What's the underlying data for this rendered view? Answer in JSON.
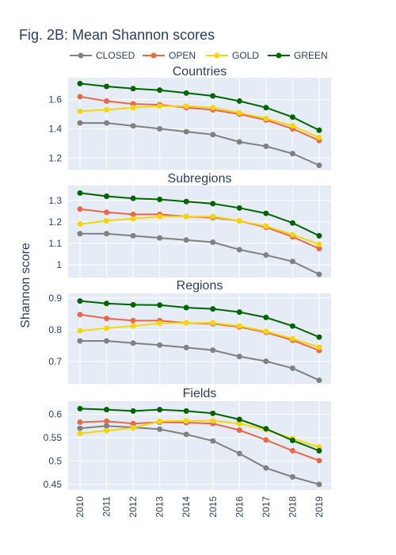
{
  "chart_data": {
    "type": "line",
    "title": "Fig. 2B: Mean Shannon scores",
    "ylabel": "Shannon score",
    "x": [
      "2010",
      "2011",
      "2012",
      "2013",
      "2014",
      "2015",
      "2016",
      "2017",
      "2018",
      "2019"
    ],
    "legend": {
      "placement": "top",
      "entries": [
        {
          "name": "CLOSED",
          "color": "#808080"
        },
        {
          "name": "OPEN",
          "color": "#e8684a"
        },
        {
          "name": "GOLD",
          "color": "#f5d60c"
        },
        {
          "name": "GREEN",
          "color": "#006400"
        }
      ]
    },
    "panels": [
      {
        "title": "Countries",
        "ylim": [
          1.12,
          1.75
        ],
        "yticks": [
          "1.2",
          "1.4",
          "1.6"
        ],
        "series": [
          {
            "name": "CLOSED",
            "values": [
              1.44,
              1.44,
              1.42,
              1.4,
              1.38,
              1.36,
              1.31,
              1.28,
              1.23,
              1.15
            ]
          },
          {
            "name": "OPEN",
            "values": [
              1.62,
              1.59,
              1.57,
              1.565,
              1.545,
              1.53,
              1.5,
              1.46,
              1.4,
              1.32
            ]
          },
          {
            "name": "GOLD",
            "values": [
              1.52,
              1.53,
              1.545,
              1.555,
              1.555,
              1.545,
              1.51,
              1.47,
              1.42,
              1.34
            ]
          },
          {
            "name": "GREEN",
            "values": [
              1.71,
              1.69,
              1.675,
              1.665,
              1.645,
              1.625,
              1.59,
              1.545,
              1.48,
              1.39
            ]
          }
        ]
      },
      {
        "title": "Subregions",
        "ylim": [
          0.94,
          1.37
        ],
        "yticks": [
          "1",
          "1.1",
          "1.2",
          "1.3"
        ],
        "series": [
          {
            "name": "CLOSED",
            "values": [
              1.145,
              1.145,
              1.135,
              1.125,
              1.115,
              1.105,
              1.07,
              1.045,
              1.015,
              0.955
            ]
          },
          {
            "name": "OPEN",
            "values": [
              1.26,
              1.245,
              1.235,
              1.235,
              1.225,
              1.22,
              1.205,
              1.175,
              1.13,
              1.075
            ]
          },
          {
            "name": "GOLD",
            "values": [
              1.19,
              1.205,
              1.215,
              1.225,
              1.225,
              1.225,
              1.205,
              1.18,
              1.14,
              1.095
            ]
          },
          {
            "name": "GREEN",
            "values": [
              1.335,
              1.32,
              1.31,
              1.305,
              1.295,
              1.285,
              1.265,
              1.24,
              1.195,
              1.135
            ]
          }
        ]
      },
      {
        "title": "Regions",
        "ylim": [
          0.63,
          0.915
        ],
        "yticks": [
          "0.7",
          "0.8",
          "0.9"
        ],
        "series": [
          {
            "name": "CLOSED",
            "values": [
              0.765,
              0.765,
              0.758,
              0.752,
              0.744,
              0.736,
              0.716,
              0.701,
              0.679,
              0.641
            ]
          },
          {
            "name": "OPEN",
            "values": [
              0.848,
              0.836,
              0.829,
              0.829,
              0.822,
              0.819,
              0.809,
              0.792,
              0.767,
              0.735
            ]
          },
          {
            "name": "GOLD",
            "values": [
              0.797,
              0.805,
              0.812,
              0.821,
              0.822,
              0.822,
              0.812,
              0.795,
              0.772,
              0.745
            ]
          },
          {
            "name": "GREEN",
            "values": [
              0.891,
              0.883,
              0.879,
              0.878,
              0.87,
              0.866,
              0.856,
              0.839,
              0.812,
              0.777
            ]
          }
        ]
      },
      {
        "title": "Fields",
        "ylim": [
          0.438,
          0.628
        ],
        "yticks": [
          "0.45",
          "0.5",
          "0.55",
          "0.6"
        ],
        "series": [
          {
            "name": "CLOSED",
            "values": [
              0.57,
              0.575,
              0.572,
              0.568,
              0.557,
              0.543,
              0.516,
              0.485,
              0.466,
              0.45
            ]
          },
          {
            "name": "OPEN",
            "values": [
              0.583,
              0.585,
              0.58,
              0.583,
              0.582,
              0.58,
              0.566,
              0.545,
              0.522,
              0.501
            ]
          },
          {
            "name": "GOLD",
            "values": [
              0.559,
              0.565,
              0.571,
              0.585,
              0.586,
              0.586,
              0.58,
              0.567,
              0.548,
              0.53
            ]
          },
          {
            "name": "GREEN",
            "values": [
              0.612,
              0.61,
              0.607,
              0.61,
              0.607,
              0.602,
              0.589,
              0.569,
              0.544,
              0.522
            ]
          }
        ]
      }
    ]
  }
}
